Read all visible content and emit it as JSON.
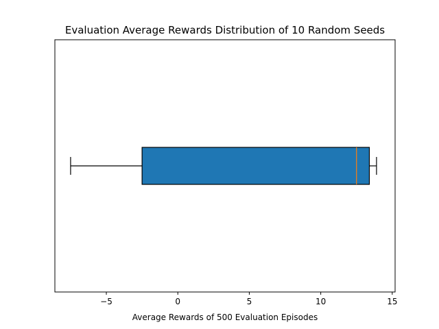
{
  "chart_data": {
    "type": "boxplot",
    "orientation": "horizontal",
    "title": "Evaluation Average Rewards Distribution of 10 Random Seeds",
    "xlabel": "Average Rewards of 500 Evaluation Episodes",
    "ylabel": "",
    "xlim": [
      -8.6,
      15.2
    ],
    "x_ticks": [
      -5,
      0,
      5,
      10,
      15
    ],
    "x_tick_labels": [
      "−5",
      "0",
      "5",
      "10",
      "15"
    ],
    "y_ticks_visible": false,
    "grid": false,
    "legend": "none",
    "box": {
      "whisker_low": -7.5,
      "q1": -2.5,
      "median": 12.5,
      "q3": 13.4,
      "whisker_high": 13.9
    },
    "colors": {
      "box_fill": "#1f77b4",
      "median_line": "#ff7f0e",
      "edge": "#000000"
    }
  }
}
